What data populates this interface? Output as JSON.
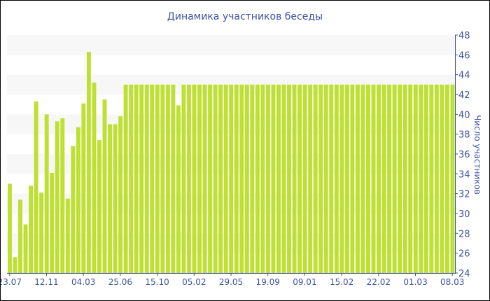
{
  "chart_data": {
    "type": "bar",
    "title": "Динамика участников беседы",
    "ylabel": "Число участников",
    "xlabel": "",
    "ylim": [
      24,
      48
    ],
    "yticks": [
      24,
      26,
      28,
      30,
      32,
      34,
      36,
      38,
      40,
      42,
      44,
      46,
      48
    ],
    "y_axis_side": "right",
    "grid": "alternating horizontal bands",
    "xtick_labels": [
      "23.07",
      "12.11",
      "04.03",
      "25.06",
      "15.10",
      "05.02",
      "29.05",
      "19.09",
      "09.01",
      "15.02",
      "22.02",
      "01.03",
      "08.03"
    ],
    "xtick_every": 7,
    "bar_color": "#bde032",
    "values": [
      33,
      25.6,
      31.4,
      28.9,
      32.8,
      41.3,
      32.1,
      40,
      34.1,
      39.3,
      39.6,
      31.5,
      36.8,
      38.7,
      41.1,
      46.3,
      43.2,
      37.4,
      41.5,
      39,
      39,
      39.8,
      43,
      43,
      43,
      43,
      43,
      43,
      43,
      43,
      43,
      43,
      40.9,
      43,
      43,
      43,
      43,
      43,
      43,
      43,
      43,
      43,
      43,
      43,
      43,
      43,
      43,
      43,
      43,
      43,
      43,
      43,
      43,
      43,
      43,
      43,
      43,
      43,
      43,
      43,
      43,
      43,
      43,
      43,
      43,
      43,
      43,
      43,
      43,
      43,
      43,
      43,
      43,
      43,
      43,
      43,
      43,
      43,
      43,
      43,
      43,
      43,
      43,
      43,
      43
    ]
  }
}
